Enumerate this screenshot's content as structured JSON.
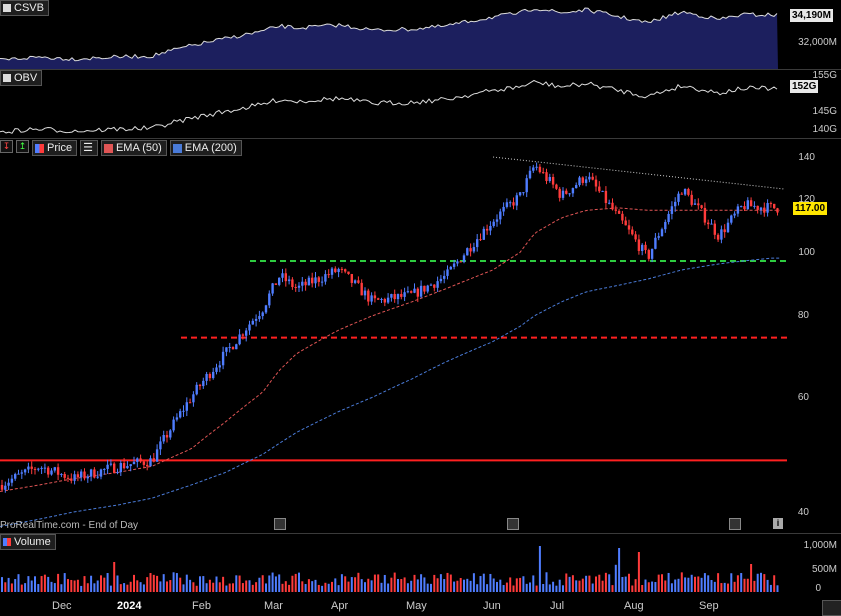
{
  "panels": {
    "csvb": {
      "label": "CSVB",
      "value_label": "34,190M",
      "ticks": [
        "32,000M"
      ]
    },
    "obv": {
      "label": "OBV",
      "value_label": "152G",
      "ticks": [
        "155G",
        "145G",
        "140G"
      ]
    },
    "price": {
      "legend": {
        "price": "Price",
        "ema50": "EMA (50)",
        "ema200": "EMA (200)"
      },
      "price_label": "117.00",
      "ticks": [
        "140",
        "120",
        "100",
        "80",
        "60",
        "40"
      ]
    },
    "volume": {
      "label": "Volume",
      "ticks": [
        "1,000M",
        "500M",
        "0"
      ]
    }
  },
  "footer": "ProRealTime.com - End of Day",
  "x_labels": [
    "Dec",
    "2024",
    "Feb",
    "Mar",
    "Apr",
    "May",
    "Jun",
    "Jul",
    "Aug",
    "Sep"
  ],
  "colors": {
    "up": "#4f7dff",
    "down": "#ff3b3b",
    "ema50": "#e05555",
    "ema200": "#4a7bd8",
    "support_green": "#2ecc40",
    "support_red": "#ff2020",
    "csvb_fill": "#1c1f5e"
  },
  "chart_data": {
    "type": "line",
    "title": "",
    "xlabel": "",
    "ylabel": "",
    "y_scale": "log",
    "ylim": [
      38,
      150
    ],
    "x": [
      "2023-11-15",
      "2023-12-01",
      "2023-12-15",
      "2024-01-02",
      "2024-01-16",
      "2024-02-01",
      "2024-02-15",
      "2024-03-01",
      "2024-03-08",
      "2024-03-15",
      "2024-04-01",
      "2024-04-15",
      "2024-05-01",
      "2024-05-15",
      "2024-06-03",
      "2024-06-14",
      "2024-06-20",
      "2024-07-01",
      "2024-07-11",
      "2024-07-24",
      "2024-08-05",
      "2024-08-19",
      "2024-09-03",
      "2024-09-13",
      "2024-09-25"
    ],
    "series": [
      {
        "name": "Price",
        "values": [
          44,
          47,
          45,
          47,
          48,
          60,
          70,
          82,
          92,
          88,
          94,
          84,
          86,
          92,
          112,
          122,
          136,
          122,
          131,
          113,
          98,
          125,
          106,
          118,
          117
        ]
      },
      {
        "name": "EMA (50)",
        "values": [
          43,
          44,
          45,
          46,
          47,
          50,
          55,
          61,
          66,
          70,
          76,
          80,
          84,
          88,
          94,
          100,
          107,
          113,
          116,
          117,
          116,
          116,
          116,
          116,
          116
        ]
      },
      {
        "name": "EMA (200)",
        "values": [
          38,
          39,
          40,
          41,
          42,
          44,
          46,
          49,
          51,
          53,
          57,
          60,
          64,
          68,
          73,
          77,
          80,
          84,
          87,
          89,
          91,
          94,
          96,
          97,
          98
        ]
      }
    ],
    "horizontal_lines": [
      {
        "y": 48,
        "color": "red",
        "style": "solid"
      },
      {
        "y": 74,
        "color": "red",
        "style": "dashed"
      },
      {
        "y": 97,
        "color": "green",
        "style": "dashed"
      }
    ],
    "trendline": {
      "from": [
        "2024-06-03",
        140
      ],
      "to": [
        "2024-09-30",
        125
      ],
      "style": "dotted"
    },
    "volume": {
      "ylim": [
        0,
        1200
      ],
      "unit": "M",
      "peak_values": [
        750,
        1150,
        680,
        1100,
        1000,
        700,
        900,
        720
      ]
    }
  }
}
